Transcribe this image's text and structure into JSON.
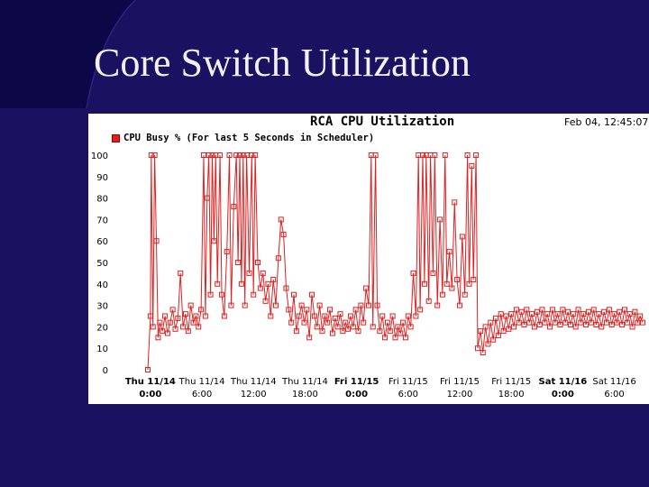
{
  "slide": {
    "title": "Core Switch Utilization"
  },
  "chart_data": {
    "type": "line",
    "title": "RCA CPU Utilization",
    "timestamp": "Feb 04, 12:45:07",
    "legend": [
      "CPU Busy % (For last 5 Seconds in Scheduler)"
    ],
    "ylim": [
      0,
      100
    ],
    "yticks": [
      0,
      10,
      20,
      30,
      40,
      50,
      60,
      70,
      80,
      90,
      100
    ],
    "xlabel": "",
    "ylabel": "",
    "xticks": [
      {
        "at": 0,
        "day": "Thu 11/14",
        "time": "0:00",
        "major": true
      },
      {
        "at": 6,
        "day": "Thu 11/14",
        "time": "6:00",
        "major": false
      },
      {
        "at": 12,
        "day": "Thu 11/14",
        "time": "12:00",
        "major": false
      },
      {
        "at": 18,
        "day": "Thu 11/14",
        "time": "18:00",
        "major": false
      },
      {
        "at": 24,
        "day": "Fri 11/15",
        "time": "0:00",
        "major": true
      },
      {
        "at": 30,
        "day": "Fri 11/15",
        "time": "6:00",
        "major": false
      },
      {
        "at": 36,
        "day": "Fri 11/15",
        "time": "12:00",
        "major": false
      },
      {
        "at": 42,
        "day": "Fri 11/15",
        "time": "18:00",
        "major": false
      },
      {
        "at": 48,
        "day": "Sat 11/16",
        "time": "0:00",
        "major": true
      },
      {
        "at": 54,
        "day": "Sat 11/16",
        "time": "6:00",
        "major": false
      }
    ],
    "xlim": [
      -0.3,
      57.3
    ],
    "series": [
      {
        "name": "CPU Busy %",
        "color": "#e02020",
        "points": [
          [
            -0.3,
            0
          ],
          [
            0,
            25
          ],
          [
            0.1,
            100
          ],
          [
            0.3,
            20
          ],
          [
            0.5,
            100
          ],
          [
            0.7,
            60
          ],
          [
            0.9,
            15
          ],
          [
            1.1,
            22
          ],
          [
            1.4,
            18
          ],
          [
            1.7,
            25
          ],
          [
            2,
            17
          ],
          [
            2.3,
            22
          ],
          [
            2.6,
            28
          ],
          [
            2.9,
            19
          ],
          [
            3.2,
            24
          ],
          [
            3.5,
            45
          ],
          [
            3.8,
            20
          ],
          [
            4.1,
            26
          ],
          [
            4.4,
            18
          ],
          [
            4.7,
            30
          ],
          [
            5,
            22
          ],
          [
            5.3,
            25
          ],
          [
            5.6,
            20
          ],
          [
            5.9,
            28
          ],
          [
            6.2,
            100
          ],
          [
            6.4,
            25
          ],
          [
            6.6,
            80
          ],
          [
            6.8,
            100
          ],
          [
            7,
            35
          ],
          [
            7.2,
            100
          ],
          [
            7.4,
            60
          ],
          [
            7.6,
            100
          ],
          [
            7.8,
            40
          ],
          [
            8.1,
            100
          ],
          [
            8.3,
            35
          ],
          [
            8.6,
            25
          ],
          [
            8.9,
            55
          ],
          [
            9.2,
            100
          ],
          [
            9.4,
            30
          ],
          [
            9.7,
            76
          ],
          [
            10,
            100
          ],
          [
            10.2,
            50
          ],
          [
            10.4,
            100
          ],
          [
            10.6,
            40
          ],
          [
            10.8,
            100
          ],
          [
            11,
            30
          ],
          [
            11.2,
            100
          ],
          [
            11.5,
            45
          ],
          [
            11.8,
            100
          ],
          [
            12,
            35
          ],
          [
            12.2,
            100
          ],
          [
            12.5,
            50
          ],
          [
            12.8,
            38
          ],
          [
            13.1,
            45
          ],
          [
            13.4,
            32
          ],
          [
            13.7,
            40
          ],
          [
            14,
            25
          ],
          [
            14.3,
            42
          ],
          [
            14.6,
            30
          ],
          [
            14.9,
            52
          ],
          [
            15.2,
            70
          ],
          [
            15.5,
            63
          ],
          [
            15.8,
            38
          ],
          [
            16.1,
            28
          ],
          [
            16.4,
            22
          ],
          [
            16.7,
            35
          ],
          [
            17,
            18
          ],
          [
            17.3,
            25
          ],
          [
            17.6,
            30
          ],
          [
            17.9,
            22
          ],
          [
            18.2,
            28
          ],
          [
            18.5,
            15
          ],
          [
            18.8,
            35
          ],
          [
            19.1,
            25
          ],
          [
            19.4,
            20
          ],
          [
            19.7,
            30
          ],
          [
            20,
            18
          ],
          [
            20.3,
            25
          ],
          [
            20.6,
            22
          ],
          [
            20.9,
            28
          ],
          [
            21.2,
            17
          ],
          [
            21.5,
            24
          ],
          [
            21.8,
            20
          ],
          [
            22.1,
            26
          ],
          [
            22.4,
            18
          ],
          [
            22.7,
            22
          ],
          [
            23,
            19
          ],
          [
            23.3,
            25
          ],
          [
            23.6,
            20
          ],
          [
            23.9,
            28
          ],
          [
            24.2,
            18
          ],
          [
            24.5,
            30
          ],
          [
            24.8,
            22
          ],
          [
            25.1,
            38
          ],
          [
            25.4,
            30
          ],
          [
            25.7,
            100
          ],
          [
            25.9,
            20
          ],
          [
            26.2,
            100
          ],
          [
            26.4,
            30
          ],
          [
            26.7,
            18
          ],
          [
            27,
            25
          ],
          [
            27.3,
            15
          ],
          [
            27.6,
            22
          ],
          [
            27.9,
            18
          ],
          [
            28.2,
            25
          ],
          [
            28.5,
            15
          ],
          [
            28.8,
            20
          ],
          [
            29.1,
            17
          ],
          [
            29.4,
            22
          ],
          [
            29.7,
            15
          ],
          [
            30,
            25
          ],
          [
            30.3,
            20
          ],
          [
            30.6,
            45
          ],
          [
            30.9,
            25
          ],
          [
            31.2,
            100
          ],
          [
            31.4,
            28
          ],
          [
            31.7,
            100
          ],
          [
            31.9,
            40
          ],
          [
            32.1,
            100
          ],
          [
            32.4,
            32
          ],
          [
            32.6,
            100
          ],
          [
            32.9,
            45
          ],
          [
            33.1,
            100
          ],
          [
            33.4,
            30
          ],
          [
            33.7,
            70
          ],
          [
            34,
            35
          ],
          [
            34.3,
            100
          ],
          [
            34.5,
            40
          ],
          [
            34.8,
            55
          ],
          [
            35.1,
            38
          ],
          [
            35.4,
            78
          ],
          [
            35.7,
            42
          ],
          [
            36,
            30
          ],
          [
            36.3,
            62
          ],
          [
            36.6,
            35
          ],
          [
            36.9,
            100
          ],
          [
            37.1,
            40
          ],
          [
            37.4,
            95
          ],
          [
            37.6,
            42
          ],
          [
            37.9,
            100
          ],
          [
            38.1,
            10
          ],
          [
            38.4,
            18
          ],
          [
            38.7,
            8
          ],
          [
            39,
            20
          ],
          [
            39.3,
            12
          ],
          [
            39.6,
            22
          ],
          [
            39.9,
            14
          ],
          [
            40.2,
            24
          ],
          [
            40.5,
            16
          ],
          [
            40.8,
            26
          ],
          [
            41.1,
            18
          ],
          [
            41.4,
            25
          ],
          [
            41.7,
            19
          ],
          [
            42,
            26
          ],
          [
            42.3,
            20
          ],
          [
            42.6,
            28
          ],
          [
            42.9,
            22
          ],
          [
            43.2,
            27
          ],
          [
            43.5,
            21
          ],
          [
            43.8,
            28
          ],
          [
            44.1,
            22
          ],
          [
            44.4,
            26
          ],
          [
            44.7,
            20
          ],
          [
            45,
            27
          ],
          [
            45.3,
            21
          ],
          [
            45.6,
            28
          ],
          [
            45.9,
            22
          ],
          [
            46.2,
            26
          ],
          [
            46.5,
            20
          ],
          [
            46.8,
            28
          ],
          [
            47.1,
            22
          ],
          [
            47.4,
            26
          ],
          [
            47.7,
            21
          ],
          [
            48,
            28
          ],
          [
            48.3,
            22
          ],
          [
            48.6,
            27
          ],
          [
            48.9,
            21
          ],
          [
            49.2,
            26
          ],
          [
            49.5,
            20
          ],
          [
            49.8,
            28
          ],
          [
            50.1,
            22
          ],
          [
            50.4,
            26
          ],
          [
            50.7,
            21
          ],
          [
            51,
            27
          ],
          [
            51.3,
            22
          ],
          [
            51.6,
            28
          ],
          [
            51.9,
            21
          ],
          [
            52.2,
            26
          ],
          [
            52.5,
            20
          ],
          [
            52.8,
            27
          ],
          [
            53.1,
            22
          ],
          [
            53.4,
            28
          ],
          [
            53.7,
            21
          ],
          [
            54,
            26
          ],
          [
            54.3,
            22
          ],
          [
            54.6,
            27
          ],
          [
            54.9,
            21
          ],
          [
            55.2,
            28
          ],
          [
            55.5,
            22
          ],
          [
            55.8,
            26
          ],
          [
            56.1,
            20
          ],
          [
            56.4,
            27
          ],
          [
            56.7,
            22
          ],
          [
            57,
            25
          ],
          [
            57.3,
            22
          ]
        ]
      }
    ]
  }
}
